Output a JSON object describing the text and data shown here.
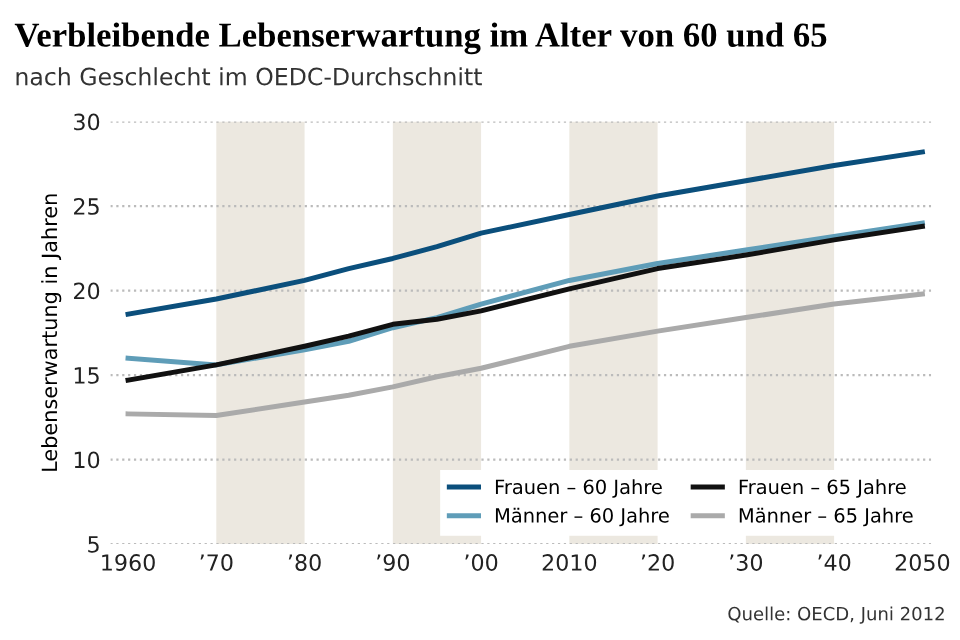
{
  "chart_data": {
    "type": "line",
    "title": "Verbleibende Lebenserwartung im Alter von 60 und 65",
    "subtitle": "nach Geschlecht im OEDC-Durchschnitt",
    "ylabel": "Lebenserwartung in Jahren",
    "annotations": [
      "Quelle: OECD, Juni 2012"
    ],
    "x": [
      1960,
      1970,
      1980,
      1985,
      1990,
      1995,
      2000,
      2010,
      2020,
      2030,
      2040,
      2050
    ],
    "series": [
      {
        "name": "Frauen – 60 Jahre",
        "color": "#0b4f7c",
        "values": [
          18.6,
          19.5,
          20.6,
          21.3,
          21.9,
          22.6,
          23.4,
          24.5,
          25.6,
          26.5,
          27.4,
          28.2
        ]
      },
      {
        "name": "Männer – 60 Jahre",
        "color": "#5f9db8",
        "values": [
          16.0,
          15.6,
          16.5,
          17.0,
          17.8,
          18.4,
          19.2,
          20.6,
          21.6,
          22.4,
          23.2,
          24.0
        ]
      },
      {
        "name": "Frauen – 65 Jahre",
        "color": "#111111",
        "values": [
          14.7,
          15.6,
          16.7,
          17.3,
          18.0,
          18.3,
          18.8,
          20.1,
          21.3,
          22.1,
          23.0,
          23.8
        ]
      },
      {
        "name": "Männer – 65 Jahre",
        "color": "#aaaaaa",
        "values": [
          12.7,
          12.6,
          13.4,
          13.8,
          14.3,
          14.9,
          15.4,
          16.7,
          17.6,
          18.4,
          19.2,
          19.8
        ]
      }
    ],
    "xlim": [
      1958,
      2051
    ],
    "ylim": [
      5,
      30
    ],
    "xticks": [
      1960,
      {
        "value": 1970,
        "label": "’70"
      },
      {
        "value": 1980,
        "label": "’80"
      },
      {
        "value": 1990,
        "label": "’90"
      },
      {
        "value": 2000,
        "label": "’00"
      },
      2010,
      {
        "value": 2020,
        "label": "’20"
      },
      {
        "value": 2030,
        "label": "’30"
      },
      {
        "value": 2040,
        "label": "’40"
      },
      2050
    ],
    "yticks": [
      5,
      10,
      15,
      20,
      25,
      30
    ],
    "bands": [
      {
        "axis": "x",
        "from": 1970,
        "to": 1980,
        "color": "#ece8e0"
      },
      {
        "axis": "x",
        "from": 1990,
        "to": 2000,
        "color": "#ece8e0"
      },
      {
        "axis": "x",
        "from": 2010,
        "to": 2020,
        "color": "#ece8e0"
      },
      {
        "axis": "x",
        "from": 2030,
        "to": 2040,
        "color": "#ece8e0"
      }
    ],
    "grid": "y",
    "legend": "bottom right",
    "line_style": "solid",
    "marker": "none"
  }
}
